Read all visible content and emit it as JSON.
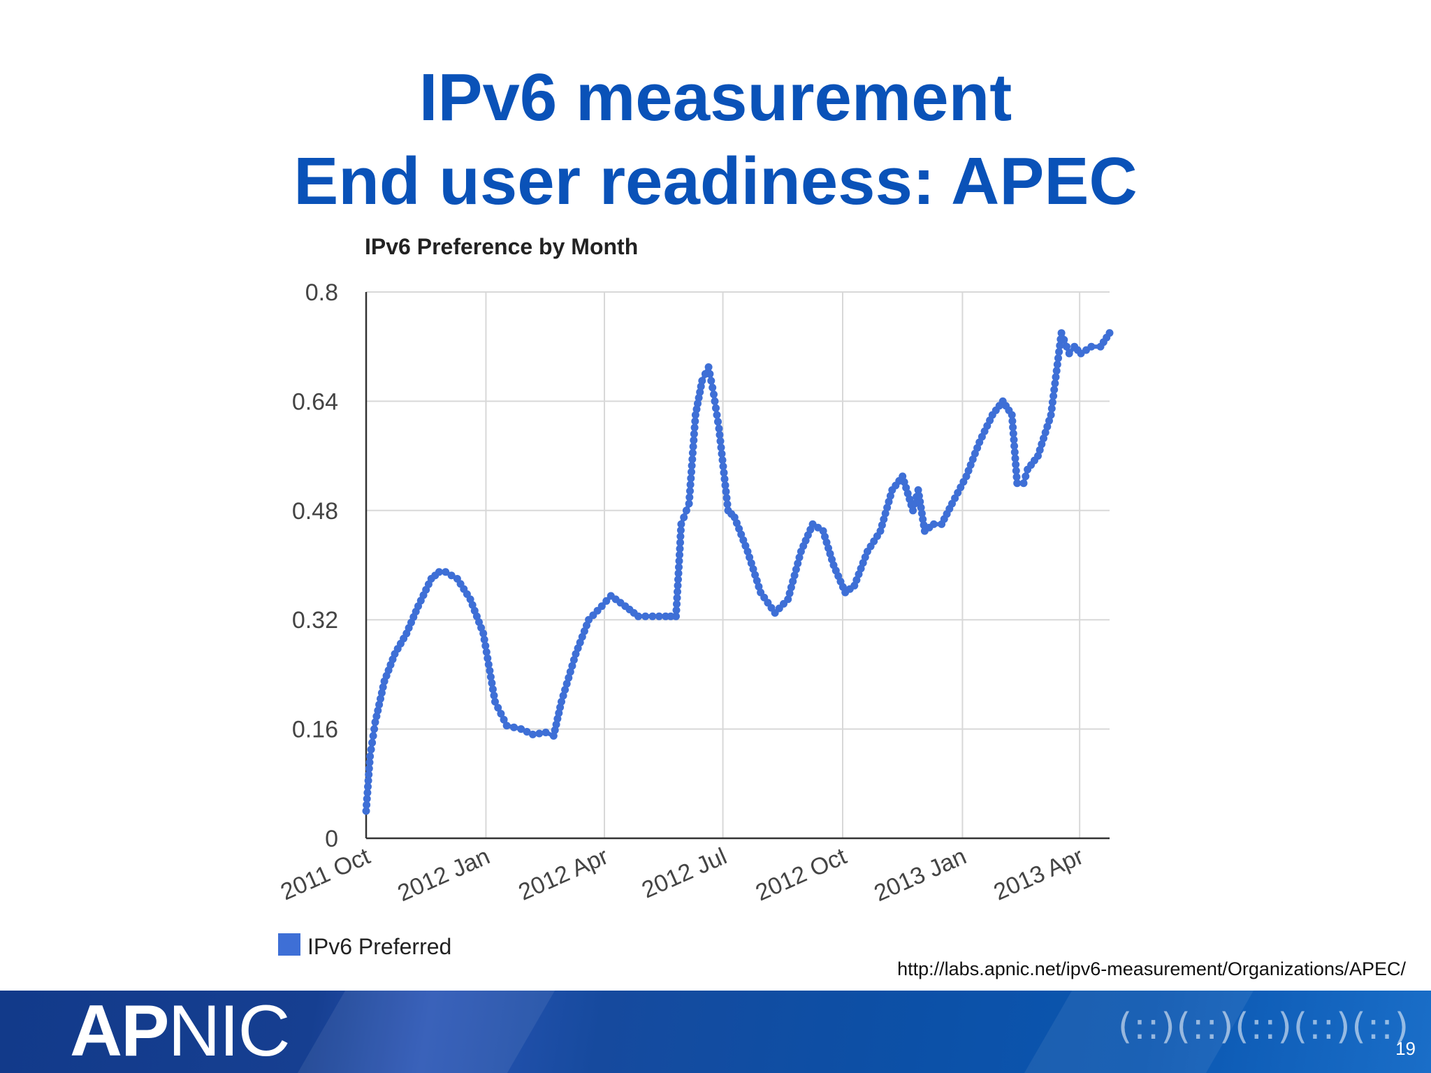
{
  "slide": {
    "title_line1": "IPv6 measurement",
    "title_line2": "End user readiness: APEC",
    "source_url": "http://labs.apnic.net/ipv6-measurement/Organizations/APEC/",
    "page_number": "19",
    "logo_bold": "AP",
    "logo_thin": "NIC"
  },
  "colors": {
    "title": "#0a52b8",
    "series": "#3e6fd6",
    "grid": "#d8d8d8",
    "axis": "#333333"
  },
  "chart_data": {
    "type": "line",
    "title": "IPv6 Preference by Month",
    "xlabel": "",
    "ylabel": "",
    "ylim": [
      0,
      0.8
    ],
    "yticks": [
      0,
      0.16,
      0.32,
      0.48,
      0.64,
      0.8
    ],
    "ytick_labels": [
      "0",
      "0.16",
      "0.32",
      "0.48",
      "0.64",
      "0.8"
    ],
    "xlim": [
      "2011-10-01",
      "2013-04-24"
    ],
    "xticks": [
      "2011-10-01",
      "2012-01-01",
      "2012-04-01",
      "2012-07-01",
      "2012-10-01",
      "2013-01-01",
      "2013-04-01"
    ],
    "xtick_labels": [
      "2011 Oct",
      "2012 Jan",
      "2012 Apr",
      "2012 Jul",
      "2012 Oct",
      "2013 Jan",
      "2013 Apr"
    ],
    "grid": true,
    "legend": "bottom-left",
    "series": [
      {
        "name": "IPv6 Preferred",
        "color": "#3e6fd6",
        "x": [
          "2011-10-01",
          "2011-10-04",
          "2011-10-08",
          "2011-10-15",
          "2011-10-23",
          "2011-11-01",
          "2011-11-10",
          "2011-11-20",
          "2011-11-26",
          "2011-12-01",
          "2011-12-10",
          "2011-12-20",
          "2011-12-30",
          "2012-01-08",
          "2012-01-17",
          "2012-01-28",
          "2012-02-06",
          "2012-02-16",
          "2012-02-22",
          "2012-02-28",
          "2012-03-10",
          "2012-03-20",
          "2012-03-30",
          "2012-04-06",
          "2012-04-17",
          "2012-04-27",
          "2012-05-08",
          "2012-05-18",
          "2012-05-26",
          "2012-05-30",
          "2012-06-05",
          "2012-06-10",
          "2012-06-15",
          "2012-06-20",
          "2012-06-24",
          "2012-06-28",
          "2012-07-05",
          "2012-07-10",
          "2012-07-20",
          "2012-07-30",
          "2012-08-10",
          "2012-08-20",
          "2012-08-30",
          "2012-09-08",
          "2012-09-16",
          "2012-09-24",
          "2012-10-03",
          "2012-10-10",
          "2012-10-20",
          "2012-10-30",
          "2012-11-08",
          "2012-11-16",
          "2012-11-24",
          "2012-11-28",
          "2012-12-03",
          "2012-12-10",
          "2012-12-16",
          "2012-12-24",
          "2013-01-04",
          "2013-01-14",
          "2013-01-24",
          "2013-02-01",
          "2013-02-08",
          "2013-02-12",
          "2013-02-17",
          "2013-02-20",
          "2013-02-28",
          "2013-03-10",
          "2013-03-18",
          "2013-03-24",
          "2013-03-28",
          "2013-04-02",
          "2013-04-10",
          "2013-04-17",
          "2013-04-24"
        ],
        "values": [
          0.04,
          0.12,
          0.17,
          0.23,
          0.27,
          0.3,
          0.34,
          0.38,
          0.39,
          0.39,
          0.38,
          0.35,
          0.3,
          0.2,
          0.165,
          0.16,
          0.152,
          0.155,
          0.15,
          0.2,
          0.27,
          0.32,
          0.34,
          0.355,
          0.34,
          0.325,
          0.325,
          0.325,
          0.325,
          0.46,
          0.49,
          0.62,
          0.67,
          0.69,
          0.65,
          0.6,
          0.48,
          0.47,
          0.42,
          0.36,
          0.33,
          0.35,
          0.42,
          0.46,
          0.45,
          0.4,
          0.36,
          0.37,
          0.42,
          0.45,
          0.51,
          0.53,
          0.48,
          0.51,
          0.45,
          0.46,
          0.46,
          0.49,
          0.53,
          0.58,
          0.62,
          0.64,
          0.62,
          0.52,
          0.52,
          0.54,
          0.56,
          0.62,
          0.74,
          0.71,
          0.72,
          0.71,
          0.72,
          0.72,
          0.74
        ]
      }
    ]
  }
}
